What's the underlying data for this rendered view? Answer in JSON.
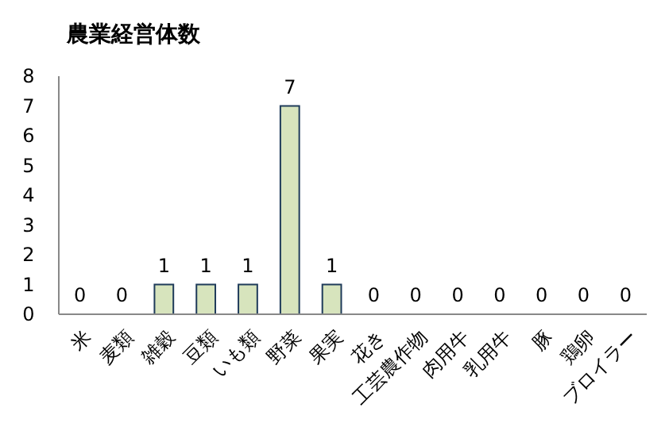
{
  "chart_data": {
    "type": "bar",
    "title": "農業経営体数",
    "categories": [
      "米",
      "麦類",
      "雑穀",
      "豆類",
      "いも類",
      "野菜",
      "果実",
      "花き",
      "工芸農作物",
      "肉用牛",
      "乳用牛",
      "豚",
      "鶏卵",
      "ブロイラー"
    ],
    "values": [
      0,
      0,
      1,
      1,
      1,
      7,
      1,
      0,
      0,
      0,
      0,
      0,
      0,
      0
    ],
    "color": "#d7e4bd",
    "ylim": [
      0,
      8
    ],
    "yticks": [
      0,
      1,
      2,
      3,
      4,
      5,
      6,
      7,
      8
    ],
    "data_labels": true,
    "grid": false
  }
}
